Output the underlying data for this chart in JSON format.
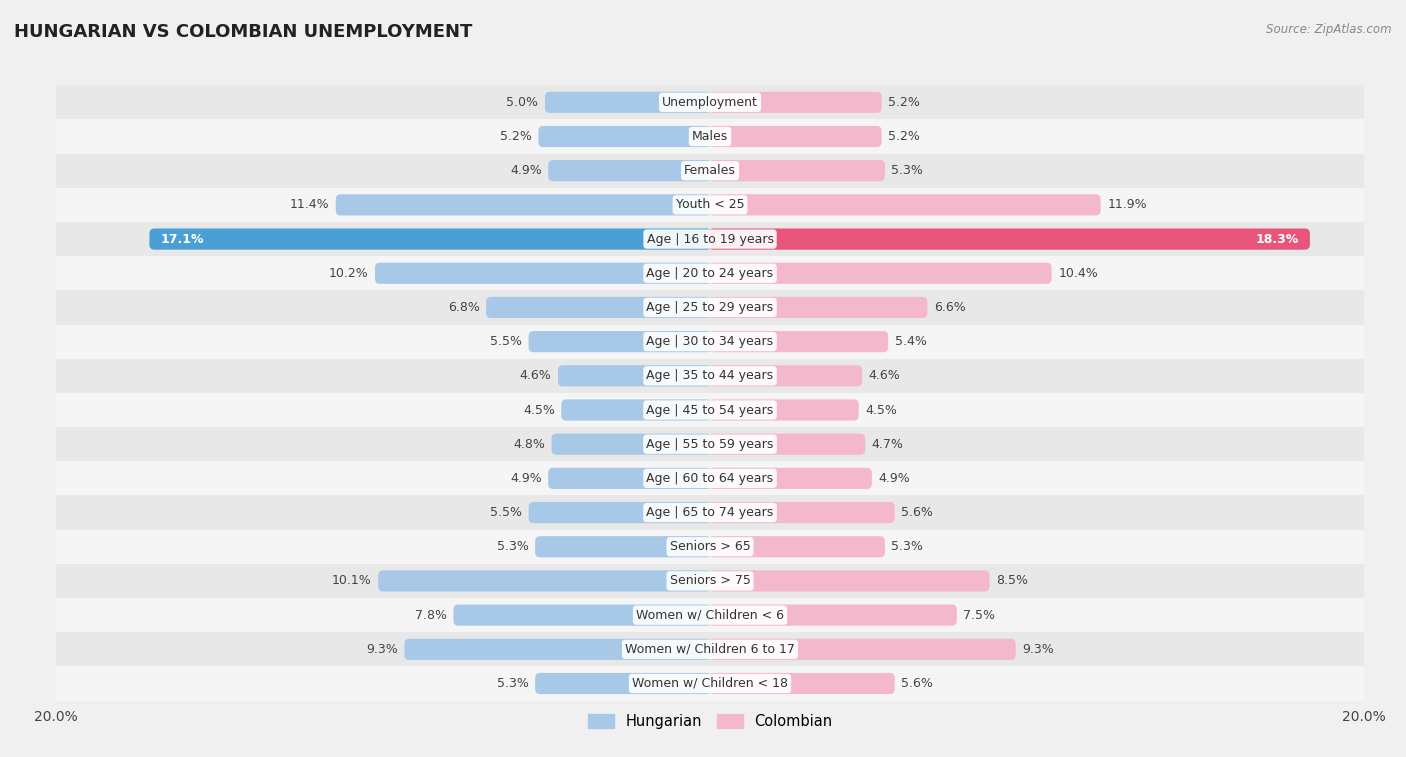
{
  "title": "HUNGARIAN VS COLOMBIAN UNEMPLOYMENT",
  "source": "Source: ZipAtlas.com",
  "categories": [
    "Unemployment",
    "Males",
    "Females",
    "Youth < 25",
    "Age | 16 to 19 years",
    "Age | 20 to 24 years",
    "Age | 25 to 29 years",
    "Age | 30 to 34 years",
    "Age | 35 to 44 years",
    "Age | 45 to 54 years",
    "Age | 55 to 59 years",
    "Age | 60 to 64 years",
    "Age | 65 to 74 years",
    "Seniors > 65",
    "Seniors > 75",
    "Women w/ Children < 6",
    "Women w/ Children 6 to 17",
    "Women w/ Children < 18"
  ],
  "hungarian": [
    5.0,
    5.2,
    4.9,
    11.4,
    17.1,
    10.2,
    6.8,
    5.5,
    4.6,
    4.5,
    4.8,
    4.9,
    5.5,
    5.3,
    10.1,
    7.8,
    9.3,
    5.3
  ],
  "colombian": [
    5.2,
    5.2,
    5.3,
    11.9,
    18.3,
    10.4,
    6.6,
    5.4,
    4.6,
    4.5,
    4.7,
    4.9,
    5.6,
    5.3,
    8.5,
    7.5,
    9.3,
    5.6
  ],
  "hungarian_color_normal": "#a8c8e8",
  "hungarian_color_highlight": "#4a9fd4",
  "colombian_color_normal": "#f4b8cc",
  "colombian_color_highlight": "#e8547a",
  "background_color": "#f0f0f0",
  "row_bg_even": "#e8e8e8",
  "row_bg_odd": "#f5f5f5",
  "axis_max": 20.0,
  "label_color": "#444444",
  "legend_hungarian": "Hungarian",
  "legend_colombian": "Colombian",
  "title_fontsize": 13,
  "label_fontsize": 9,
  "value_fontsize": 9,
  "highlight_index": 4
}
